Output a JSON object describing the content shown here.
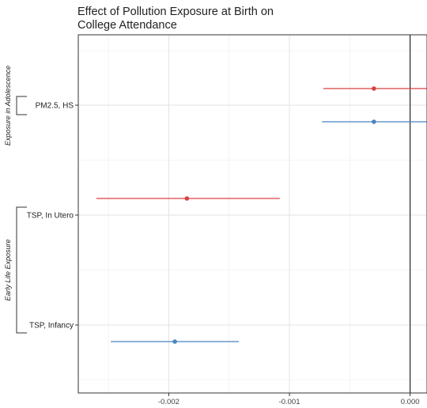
{
  "chart_data": {
    "type": "scatter",
    "subtype": "coefficient-plot-with-confidence-intervals",
    "title_lines": [
      "Effect of Pollution Exposure at Birth on",
      "College Attendance"
    ],
    "xlim": [
      -0.00275,
      0.00014
    ],
    "x_ticks": [
      -0.002,
      -0.001,
      0.0
    ],
    "x_tick_labels": [
      "-0.002",
      "-0.001",
      "0.000"
    ],
    "reference_line_x": 0.0,
    "grid": true,
    "categories": [
      "PM2.5, HS",
      "TSP, In Utero",
      "TSP, Infancy"
    ],
    "groups": [
      {
        "label": "Exposure in Adolescence",
        "categories": [
          "PM2.5, HS"
        ]
      },
      {
        "label": "Early Life Exposure",
        "categories": [
          "TSP, In Utero",
          "TSP, Infancy"
        ]
      }
    ],
    "points": [
      {
        "category": "PM2.5, HS",
        "offset": "above",
        "color": "#d94040",
        "estimate": -0.0003,
        "ci_low": -0.00072,
        "ci_high": 0.00017
      },
      {
        "category": "PM2.5, HS",
        "offset": "below",
        "color": "#4b83c0",
        "estimate": -0.0003,
        "ci_low": -0.00073,
        "ci_high": 0.00016
      },
      {
        "category": "TSP, In Utero",
        "offset": "above",
        "color": "#d94040",
        "estimate": -0.00185,
        "ci_low": -0.0026,
        "ci_high": -0.00108
      },
      {
        "category": "TSP, Infancy",
        "offset": "below",
        "color": "#4b83c0",
        "estimate": -0.00195,
        "ci_low": -0.00248,
        "ci_high": -0.00142
      }
    ]
  }
}
